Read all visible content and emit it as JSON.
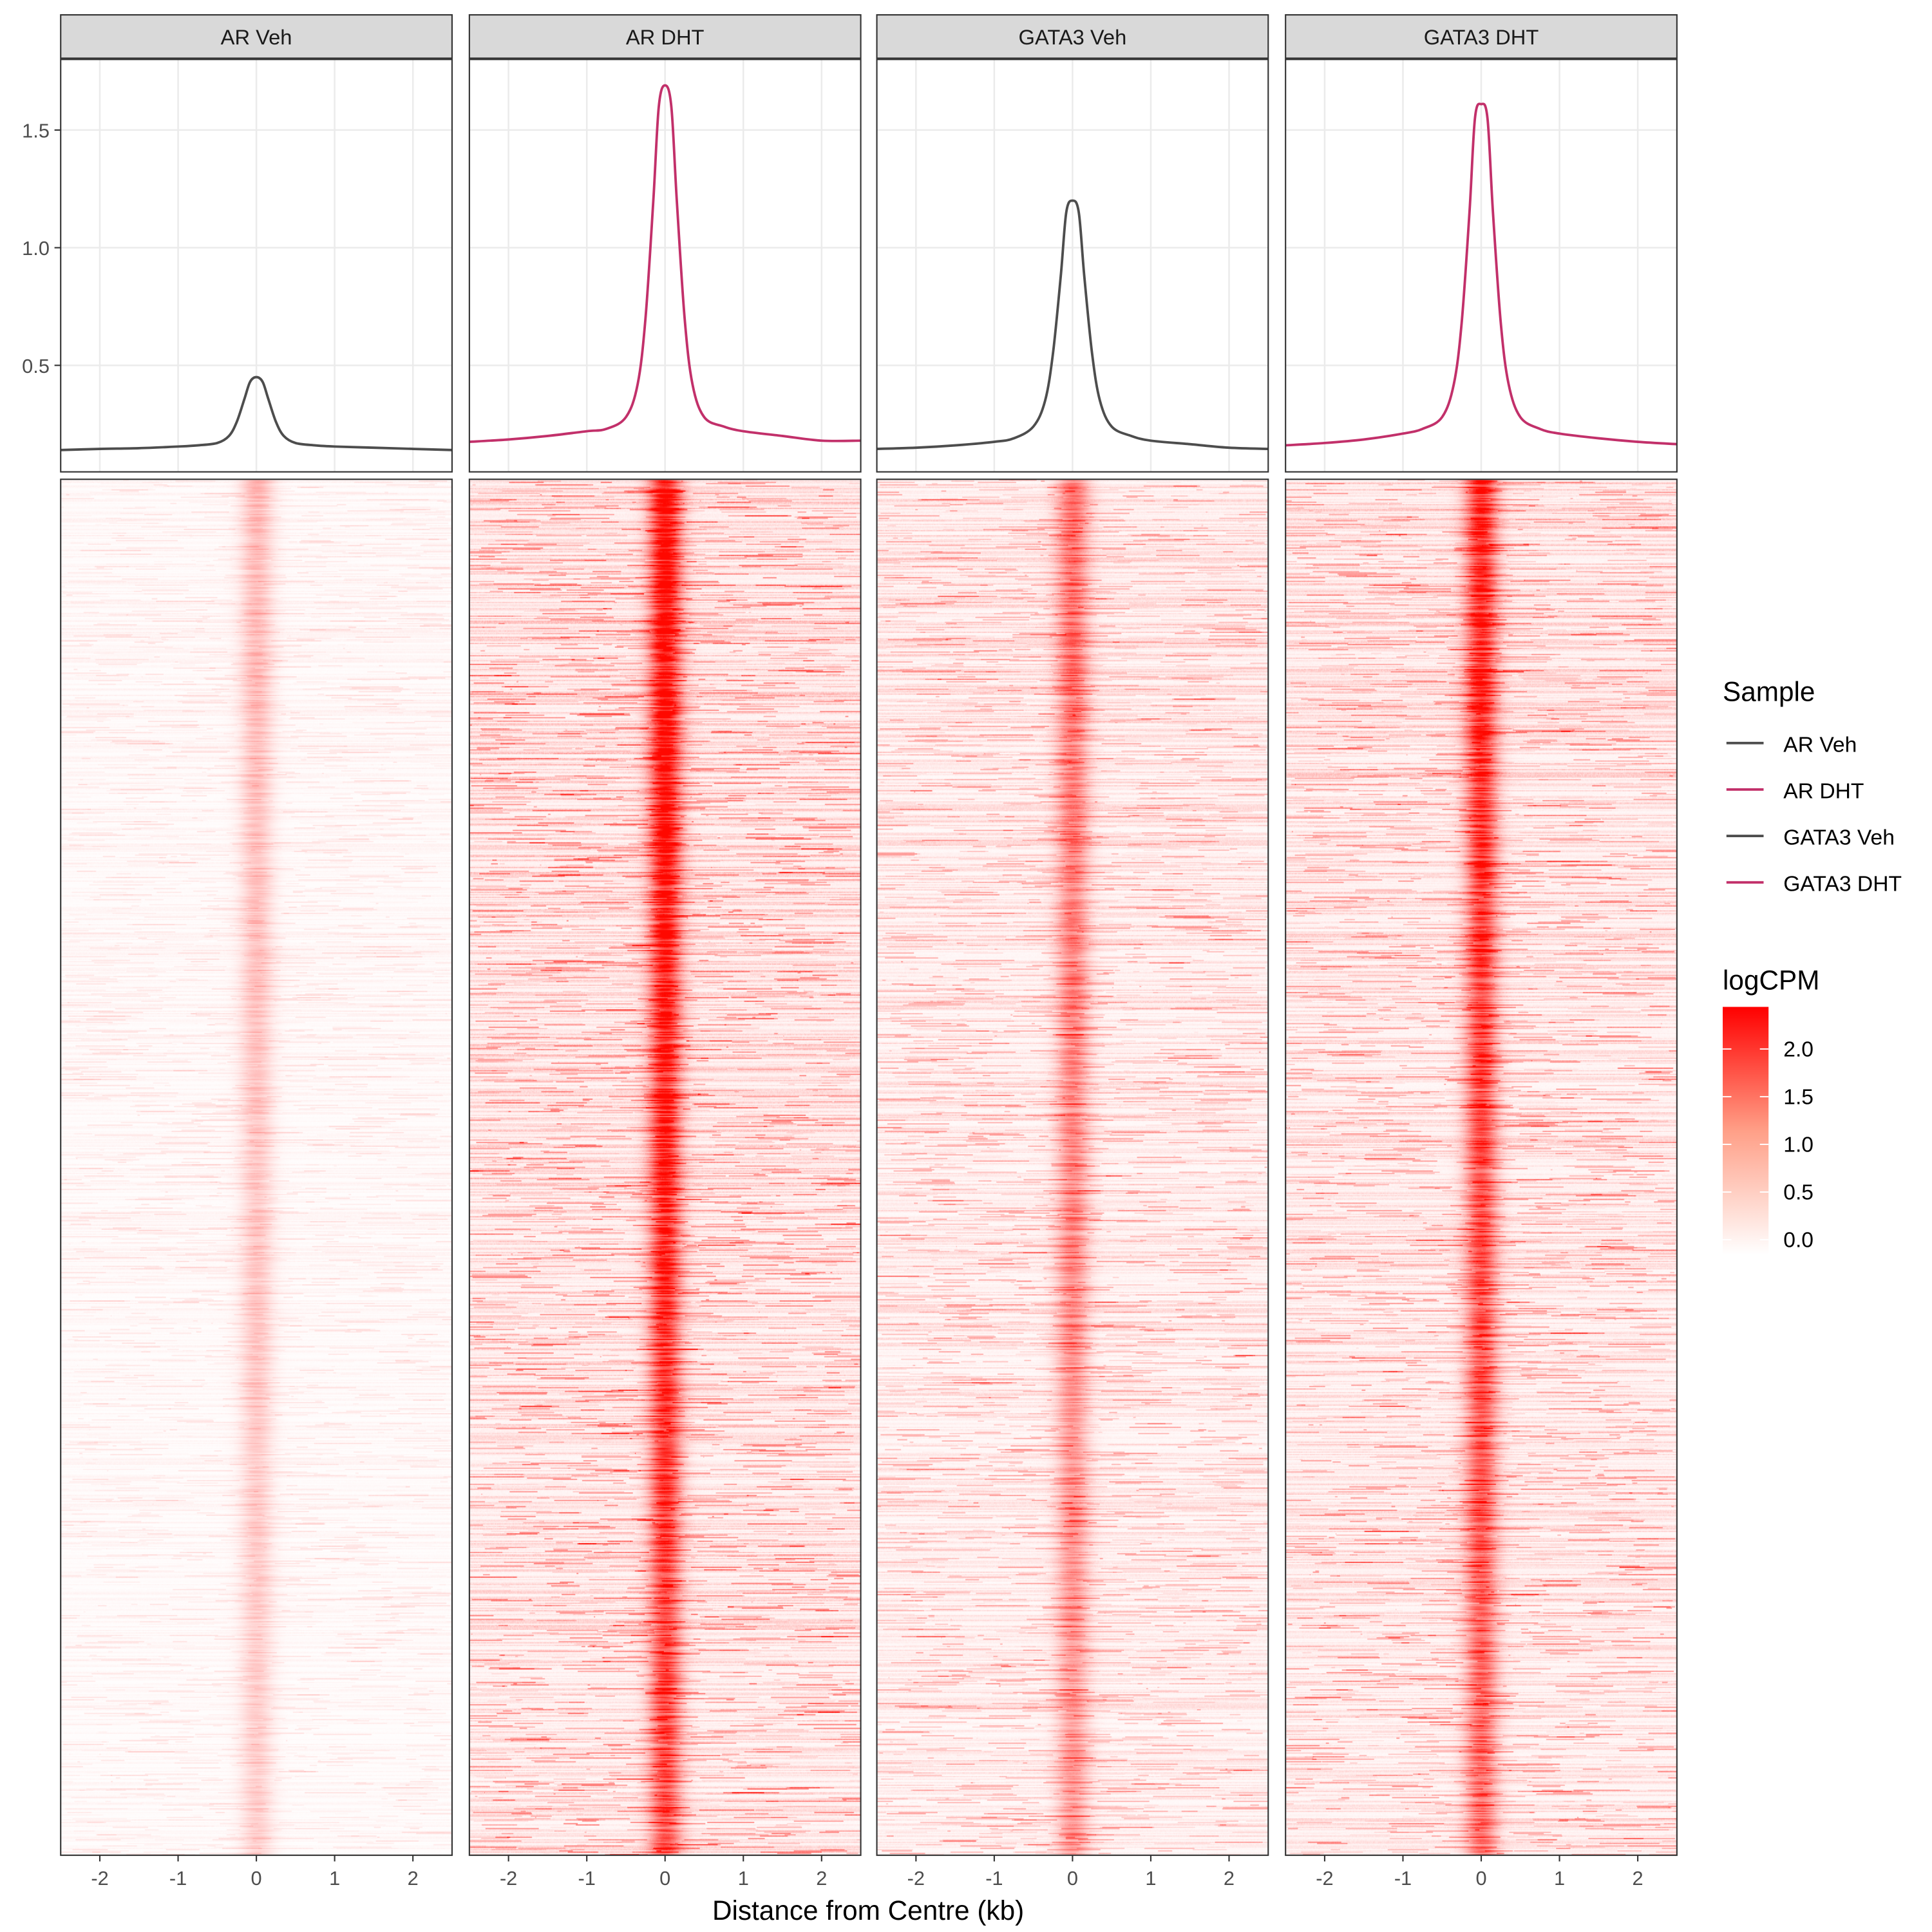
{
  "chart_data": {
    "type": "line",
    "description_kind": "faceted profile + heatmap",
    "panels": [
      "AR Veh",
      "AR DHT",
      "GATA3 Veh",
      "GATA3 DHT"
    ],
    "xlabel": "Distance from Centre (kb)",
    "xlim": [
      -2.5,
      2.5
    ],
    "xticks": [
      -2,
      -1,
      0,
      1,
      2
    ],
    "ylim": [
      0.05,
      1.8
    ],
    "yticks": [
      0.5,
      1.0,
      1.5
    ],
    "grid": true,
    "x": [
      -2.5,
      -2,
      -1.5,
      -1,
      -0.75,
      -0.5,
      -0.35,
      -0.25,
      -0.15,
      -0.08,
      0,
      0.08,
      0.15,
      0.25,
      0.35,
      0.5,
      0.75,
      1,
      1.5,
      2,
      2.5
    ],
    "series": [
      {
        "name": "AR Veh",
        "color": "#4D4D4D",
        "values": [
          0.14,
          0.145,
          0.148,
          0.155,
          0.16,
          0.17,
          0.2,
          0.26,
          0.36,
          0.43,
          0.45,
          0.43,
          0.36,
          0.26,
          0.2,
          0.17,
          0.16,
          0.155,
          0.15,
          0.145,
          0.14
        ]
      },
      {
        "name": "AR DHT",
        "color": "#C2306A",
        "values": [
          0.175,
          0.185,
          0.2,
          0.22,
          0.23,
          0.28,
          0.42,
          0.7,
          1.2,
          1.6,
          1.69,
          1.6,
          1.2,
          0.7,
          0.42,
          0.28,
          0.24,
          0.22,
          0.2,
          0.18,
          0.18
        ]
      },
      {
        "name": "GATA3 Veh",
        "color": "#4D4D4D",
        "values": [
          0.145,
          0.15,
          0.16,
          0.175,
          0.19,
          0.24,
          0.35,
          0.55,
          0.88,
          1.15,
          1.2,
          1.15,
          0.88,
          0.55,
          0.35,
          0.24,
          0.2,
          0.18,
          0.165,
          0.15,
          0.145
        ]
      },
      {
        "name": "GATA3 DHT",
        "color": "#C2306A",
        "values": [
          0.16,
          0.17,
          0.185,
          0.21,
          0.23,
          0.28,
          0.42,
          0.68,
          1.15,
          1.55,
          1.61,
          1.55,
          1.15,
          0.68,
          0.42,
          0.28,
          0.23,
          0.21,
          0.19,
          0.175,
          0.165
        ]
      }
    ],
    "heatmap": {
      "fill_label": "logCPM",
      "fill_range": [
        0,
        2.43
      ],
      "fill_ticks": [
        "0.0",
        "0.5",
        "1.0",
        "1.5",
        "2.0"
      ],
      "low_color": "#FFFFFF",
      "high_color": "#FF0000",
      "panel_center_logcpm": [
        0.6,
        2.3,
        1.2,
        1.9
      ],
      "panel_background_logcpm": [
        0.08,
        0.35,
        0.25,
        0.3
      ]
    },
    "legend": {
      "title": "Sample",
      "position": "right"
    }
  }
}
